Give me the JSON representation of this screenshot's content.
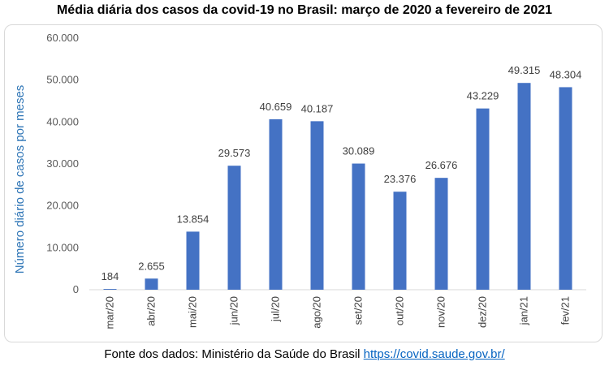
{
  "colors": {
    "bar": "#4472c4",
    "ylabel": "#2e75b6",
    "link": "#0563c1"
  },
  "source": {
    "text": "Fonte dos dados: Ministério da Saúde do Brasil",
    "link": "https://covid.saude.gov.br/"
  },
  "chart_data": {
    "type": "bar",
    "title": "Média diária dos casos da covid-19 no Brasil: março de 2020 a fevereiro de 2021",
    "xlabel": "",
    "ylabel": "Número diário  de casos por meses",
    "ylim": [
      0,
      60000
    ],
    "yticks": [
      0,
      10000,
      20000,
      30000,
      40000,
      50000,
      60000
    ],
    "ytick_labels": [
      "0",
      "10.000",
      "20.000",
      "30.000",
      "40.000",
      "50.000",
      "60.000"
    ],
    "grid": false,
    "categories": [
      "mar/20",
      "abr/20",
      "mai/20",
      "jun/20",
      "jul/20",
      "ago/20",
      "set/20",
      "out/20",
      "nov/20",
      "dez/20",
      "jan/21",
      "fev/21"
    ],
    "values": [
      184,
      2655,
      13854,
      29573,
      40659,
      40187,
      30089,
      23376,
      26676,
      43229,
      49315,
      48304
    ],
    "data_labels": [
      "184",
      "2.655",
      "13.854",
      "29.573",
      "40.659",
      "40.187",
      "30.089",
      "23.376",
      "26.676",
      "43.229",
      "49.315",
      "48.304"
    ]
  }
}
